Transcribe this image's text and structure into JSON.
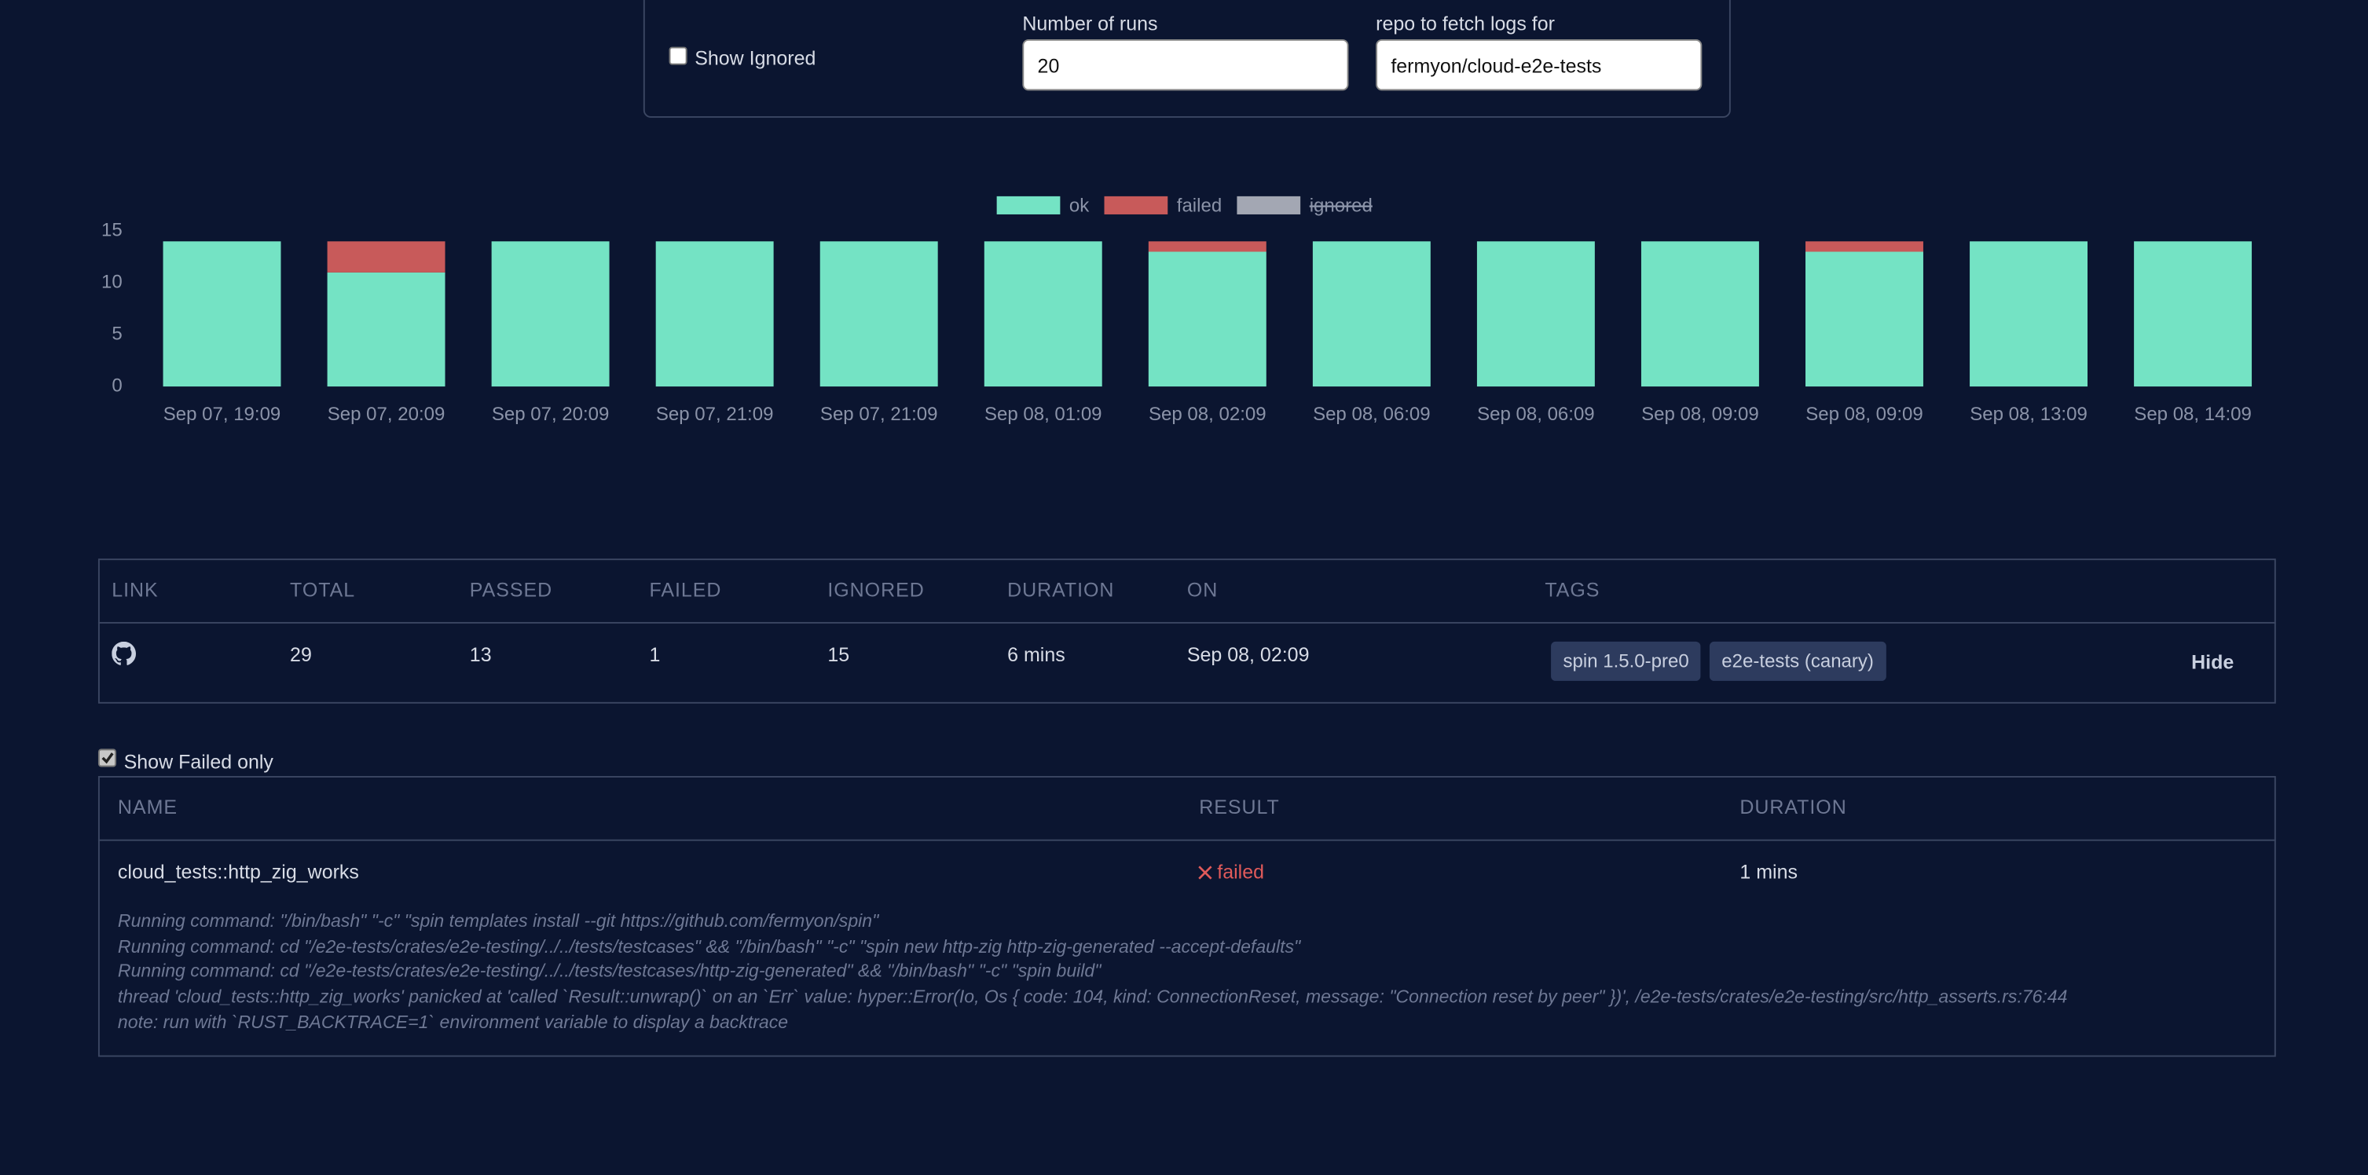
{
  "form": {
    "show_ignored": "Show Ignored",
    "runs_label": "Number of runs",
    "runs_value": "20",
    "repo_label": "repo to fetch logs for",
    "repo_value": "fermyon/cloud-e2e-tests"
  },
  "chart_data": {
    "type": "bar",
    "stacked": true,
    "categories": [
      "Sep 07, 19:09",
      "Sep 07, 20:09",
      "Sep 07, 20:09",
      "Sep 07, 21:09",
      "Sep 07, 21:09",
      "Sep 08, 01:09",
      "Sep 08, 02:09",
      "Sep 08, 06:09",
      "Sep 08, 06:09",
      "Sep 08, 09:09",
      "Sep 08, 09:09",
      "Sep 08, 13:09",
      "Sep 08, 14:09"
    ],
    "series": [
      {
        "name": "ok",
        "color": "#74e3c4",
        "values": [
          14,
          11,
          14,
          14,
          14,
          14,
          13,
          14,
          14,
          14,
          13,
          14,
          14
        ]
      },
      {
        "name": "failed",
        "color": "#c85a5a",
        "values": [
          0,
          3,
          0,
          0,
          0,
          0,
          1,
          0,
          0,
          0,
          1,
          0,
          0
        ]
      },
      {
        "name": "ignored",
        "color": "#a3a7b3",
        "hidden": true
      }
    ],
    "ylim": [
      0,
      15
    ],
    "yticks": [
      0,
      5,
      10,
      15
    ],
    "grid": false,
    "legend": "top"
  },
  "runs_table": {
    "headers": [
      "LINK",
      "TOTAL",
      "PASSED",
      "FAILED",
      "IGNORED",
      "DURATION",
      "ON",
      "TAGS"
    ],
    "row": {
      "total": "29",
      "passed": "13",
      "failed": "1",
      "ignored": "15",
      "duration": "6 mins",
      "on": "Sep 08, 02:09",
      "tags": [
        "spin 1.5.0-pre0",
        "e2e-tests (canary)"
      ],
      "action": "Hide"
    }
  },
  "show_failed_only": "Show Failed only",
  "results_table": {
    "headers": [
      "NAME",
      "RESULT",
      "DURATION"
    ],
    "row": {
      "name": "cloud_tests::http_zig_works",
      "result": "failed",
      "duration": "1 mins"
    },
    "log": [
      "Running command: \"/bin/bash\" \"-c\" \"spin templates install --git https://github.com/fermyon/spin\"",
      "Running command: cd \"/e2e-tests/crates/e2e-testing/../../tests/testcases\" && \"/bin/bash\" \"-c\" \"spin new http-zig http-zig-generated --accept-defaults\"",
      "Running command: cd \"/e2e-tests/crates/e2e-testing/../../tests/testcases/http-zig-generated\" && \"/bin/bash\" \"-c\" \"spin build\"",
      "thread 'cloud_tests::http_zig_works' panicked at 'called `Result::unwrap()` on an `Err` value: hyper::Error(Io, Os { code: 104, kind: ConnectionReset, message: \"Connection reset by peer\" })', /e2e-tests/crates/e2e-testing/src/http_asserts.rs:76:44",
      "note: run with `RUST_BACKTRACE=1` environment variable to display a backtrace"
    ]
  }
}
